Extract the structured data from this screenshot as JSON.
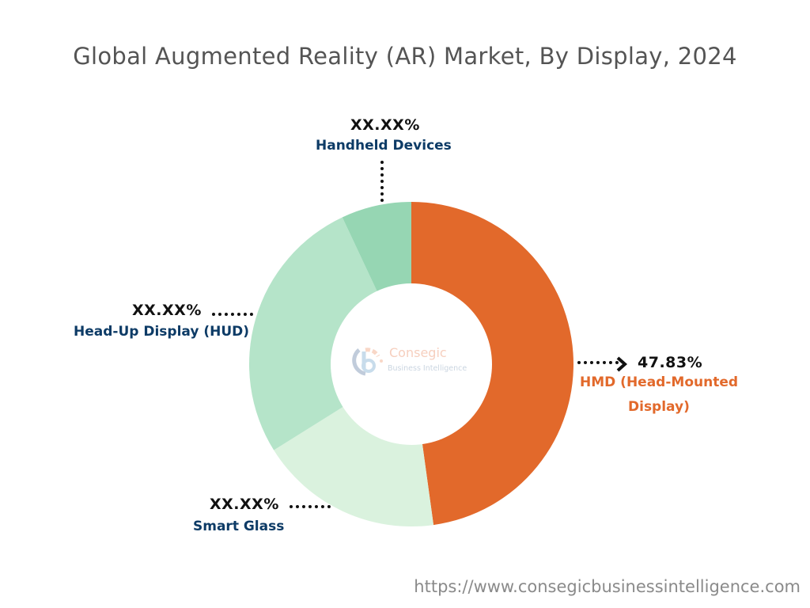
{
  "title": "Global Augmented Reality (AR) Market, By Display, 2024",
  "footer_url": "https://www.consegicbusinessintelligence.com",
  "watermark": {
    "brand": "Consegic",
    "subtitle": "Business Intelligence"
  },
  "labels": {
    "handheld": {
      "pct": "XX.XX%",
      "name": "Handheld Devices"
    },
    "hud": {
      "pct": "XX.XX%",
      "name": "Head-Up Display (HUD)"
    },
    "smart_glass": {
      "pct": "XX.XX%",
      "name": "Smart Glass"
    },
    "hmd": {
      "pct": "47.83%",
      "name_line1": "HMD (Head-Mounted",
      "name_line2": "Display)"
    }
  },
  "colors": {
    "hmd": "#e2692b",
    "smart_glass": "#daf2de",
    "hud": "#b5e4c9",
    "handheld": "#96d6b3",
    "label_text": "#0d3b66"
  },
  "chart_data": {
    "type": "pie",
    "variant": "donut",
    "title": "Global Augmented Reality (AR) Market, By Display, 2024",
    "categories": [
      "HMD (Head-Mounted Display)",
      "Smart Glass",
      "Head-Up Display (HUD)",
      "Handheld Devices"
    ],
    "values": [
      47.83,
      18.3,
      26.9,
      7.0
    ],
    "value_labels": [
      "47.83%",
      "XX.XX%",
      "XX.XX%",
      "XX.XX%"
    ],
    "colors": [
      "#e2692b",
      "#daf2de",
      "#b5e4c9",
      "#96d6b3"
    ],
    "start_angle": "12 o'clock, clockwise",
    "legend": "none (callout labels)",
    "note": "Only HMD value is labeled; other values estimated from arc geometry"
  }
}
